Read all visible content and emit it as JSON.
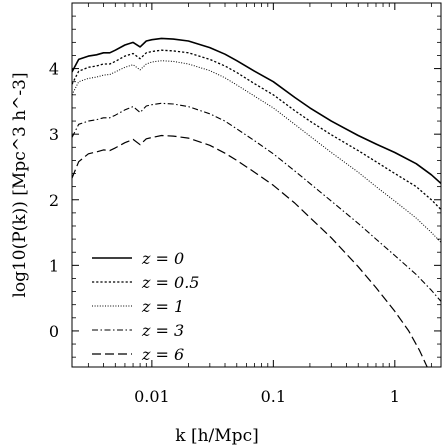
{
  "chart_data": {
    "type": "line",
    "title": "",
    "xlabel": "k [h/Mpc]",
    "ylabel": "log10(P(k)) [Mpc^3 h^-3]",
    "xscale": "log",
    "xlim": [
      0.0022,
      2.4
    ],
    "ylim": [
      -0.55,
      5.0
    ],
    "x_ticks": [
      0.01,
      0.1,
      1
    ],
    "x_tick_labels": [
      "0.01",
      "0.1",
      "1"
    ],
    "y_ticks": [
      0,
      1,
      2,
      3,
      4
    ],
    "y_tick_labels": [
      "0",
      "1",
      "2",
      "3",
      "4"
    ],
    "legend_position": "bottom-left",
    "legend": [
      "z = 0",
      "z = 0.5",
      "z = 1",
      "z = 3",
      "z = 6"
    ],
    "series": [
      {
        "name": "z = 0",
        "style": "solid",
        "x": [
          0.0022,
          0.0025,
          0.003,
          0.0035,
          0.004,
          0.0045,
          0.005,
          0.006,
          0.007,
          0.008,
          0.009,
          0.01,
          0.012,
          0.015,
          0.02,
          0.03,
          0.04,
          0.05,
          0.07,
          0.1,
          0.15,
          0.2,
          0.3,
          0.5,
          0.7,
          1.0,
          1.5,
          2.0,
          2.4
        ],
        "values": [
          3.95,
          4.14,
          4.19,
          4.21,
          4.24,
          4.24,
          4.28,
          4.36,
          4.4,
          4.33,
          4.42,
          4.44,
          4.46,
          4.45,
          4.42,
          4.32,
          4.22,
          4.12,
          3.96,
          3.8,
          3.56,
          3.4,
          3.2,
          2.98,
          2.85,
          2.72,
          2.55,
          2.38,
          2.25
        ]
      },
      {
        "name": "z = 0.5",
        "style": "dotted",
        "x": [
          0.0022,
          0.0025,
          0.003,
          0.0035,
          0.004,
          0.0045,
          0.005,
          0.006,
          0.007,
          0.008,
          0.009,
          0.01,
          0.012,
          0.015,
          0.02,
          0.03,
          0.04,
          0.05,
          0.07,
          0.1,
          0.15,
          0.2,
          0.3,
          0.5,
          0.7,
          1.0,
          1.5,
          2.0,
          2.4
        ],
        "values": [
          3.76,
          3.96,
          4.02,
          4.04,
          4.07,
          4.07,
          4.11,
          4.19,
          4.23,
          4.15,
          4.24,
          4.26,
          4.28,
          4.27,
          4.24,
          4.14,
          4.04,
          3.94,
          3.77,
          3.6,
          3.36,
          3.2,
          2.99,
          2.75,
          2.58,
          2.4,
          2.2,
          2.0,
          1.85
        ]
      },
      {
        "name": "z = 1",
        "style": "fine-dotted",
        "x": [
          0.0022,
          0.0025,
          0.003,
          0.0035,
          0.004,
          0.0045,
          0.005,
          0.006,
          0.007,
          0.008,
          0.009,
          0.01,
          0.012,
          0.015,
          0.02,
          0.03,
          0.04,
          0.05,
          0.07,
          0.1,
          0.15,
          0.2,
          0.3,
          0.5,
          0.7,
          1.0,
          1.5,
          2.0,
          2.4
        ],
        "values": [
          3.6,
          3.8,
          3.85,
          3.87,
          3.9,
          3.91,
          3.95,
          4.02,
          4.06,
          3.98,
          4.07,
          4.1,
          4.12,
          4.11,
          4.07,
          3.97,
          3.86,
          3.75,
          3.58,
          3.4,
          3.15,
          2.97,
          2.72,
          2.42,
          2.2,
          1.98,
          1.72,
          1.5,
          1.35
        ]
      },
      {
        "name": "z = 3",
        "style": "dash-dot",
        "x": [
          0.0022,
          0.0025,
          0.003,
          0.0035,
          0.004,
          0.0045,
          0.005,
          0.006,
          0.007,
          0.008,
          0.009,
          0.01,
          0.012,
          0.015,
          0.02,
          0.03,
          0.04,
          0.05,
          0.07,
          0.1,
          0.15,
          0.2,
          0.3,
          0.5,
          0.7,
          1.0,
          1.5,
          2.0,
          2.4
        ],
        "values": [
          2.95,
          3.15,
          3.2,
          3.22,
          3.25,
          3.25,
          3.29,
          3.37,
          3.42,
          3.33,
          3.43,
          3.45,
          3.47,
          3.46,
          3.42,
          3.31,
          3.2,
          3.08,
          2.9,
          2.7,
          2.44,
          2.25,
          1.98,
          1.64,
          1.4,
          1.15,
          0.86,
          0.62,
          0.45
        ]
      },
      {
        "name": "z = 6",
        "style": "dashed",
        "x": [
          0.0022,
          0.0025,
          0.003,
          0.0035,
          0.004,
          0.0045,
          0.005,
          0.006,
          0.007,
          0.008,
          0.009,
          0.01,
          0.012,
          0.015,
          0.02,
          0.03,
          0.04,
          0.05,
          0.07,
          0.1,
          0.15,
          0.2,
          0.3,
          0.5,
          0.7,
          1.0,
          1.3,
          1.6,
          1.9
        ],
        "values": [
          2.33,
          2.58,
          2.7,
          2.73,
          2.76,
          2.75,
          2.79,
          2.87,
          2.92,
          2.84,
          2.93,
          2.95,
          2.98,
          2.97,
          2.94,
          2.83,
          2.71,
          2.6,
          2.42,
          2.22,
          1.95,
          1.73,
          1.42,
          0.98,
          0.66,
          0.3,
          0.0,
          -0.3,
          -0.6
        ]
      }
    ]
  }
}
